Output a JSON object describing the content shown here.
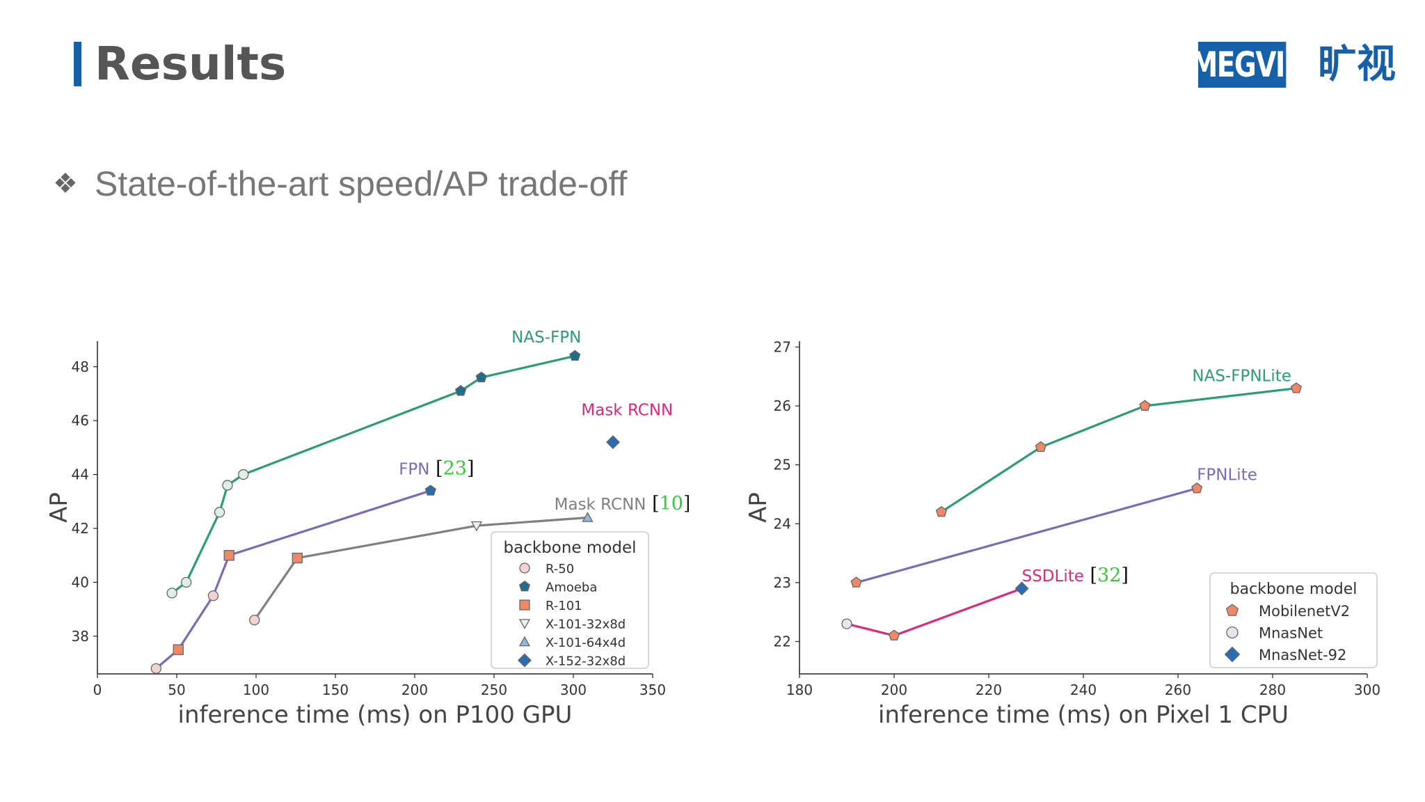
{
  "slide": {
    "title": "Results",
    "bullet_icon": "diamond-cluster-icon",
    "bullet_text": "State-of-the-art speed/AP trade-off",
    "logo": {
      "text_en": "MEGVII",
      "text_cn": "旷视",
      "color": "#1560a8"
    }
  },
  "chart_data": [
    {
      "type": "line",
      "title": "",
      "xlabel": "inference time (ms) on P100 GPU",
      "ylabel": "AP",
      "xlim": [
        0,
        350
      ],
      "ylim": [
        36.6,
        48.95
      ],
      "xticks": [
        0,
        50,
        100,
        150,
        200,
        250,
        300,
        350
      ],
      "yticks": [
        38,
        40,
        42,
        44,
        46,
        48
      ],
      "legend": {
        "title": "backbone model",
        "placement": "lower-right",
        "entries": [
          {
            "label": "R-50",
            "marker": "circle",
            "color": "#f2d3d0"
          },
          {
            "label": "Amoeba",
            "marker": "pentagon",
            "color": "#1f6e8c"
          },
          {
            "label": "R-101",
            "marker": "square",
            "color": "#ee8866"
          },
          {
            "label": "X-101-32x8d",
            "marker": "triangle-down",
            "color": "#eeeeee"
          },
          {
            "label": "X-101-64x4d",
            "marker": "triangle-up",
            "color": "#8fb8de"
          },
          {
            "label": "X-152-32x8d",
            "marker": "diamond",
            "color": "#2b6cb0"
          }
        ]
      },
      "series": [
        {
          "name": "NAS-FPN",
          "label": "NAS-FPN",
          "color": "#2a9d76",
          "points": [
            {
              "x": 47,
              "y": 39.6,
              "m": "circle",
              "f": "#dceee6"
            },
            {
              "x": 56,
              "y": 40.0,
              "m": "circle",
              "f": "#dceee6"
            },
            {
              "x": 77,
              "y": 42.6,
              "m": "circle",
              "f": "#dceee6"
            },
            {
              "x": 82,
              "y": 43.6,
              "m": "circle",
              "f": "#dceee6"
            },
            {
              "x": 92,
              "y": 44.0,
              "m": "circle",
              "f": "#dceee6"
            },
            {
              "x": 229,
              "y": 47.1,
              "m": "pentagon",
              "f": "#1f6e8c"
            },
            {
              "x": 242,
              "y": 47.6,
              "m": "pentagon",
              "f": "#1f6e8c"
            },
            {
              "x": 301,
              "y": 48.4,
              "m": "pentagon",
              "f": "#1f6e8c"
            }
          ]
        },
        {
          "name": "FPN",
          "label": "FPN",
          "ref": "23",
          "color": "#7b6bb5",
          "points": [
            {
              "x": 37,
              "y": 36.8,
              "m": "circle",
              "f": "#f2d3d0"
            },
            {
              "x": 51,
              "y": 37.5,
              "m": "square",
              "f": "#ee8866"
            },
            {
              "x": 73,
              "y": 39.5,
              "m": "circle",
              "f": "#f2d3d0"
            },
            {
              "x": 83,
              "y": 41.0,
              "m": "square",
              "f": "#ee8866"
            },
            {
              "x": 210,
              "y": 43.4,
              "m": "pentagon",
              "f": "#2b6cb0"
            }
          ]
        },
        {
          "name": "Mask RCNN [10]",
          "label": "Mask RCNN",
          "ref": "10",
          "color": "#808080",
          "points": [
            {
              "x": 99,
              "y": 38.6,
              "m": "circle",
              "f": "#f2d3d0"
            },
            {
              "x": 126,
              "y": 40.9,
              "m": "square",
              "f": "#ee8866"
            },
            {
              "x": 239,
              "y": 42.1,
              "m": "triangle-down",
              "f": "#eeeeee"
            },
            {
              "x": 309,
              "y": 42.4,
              "m": "triangle-up",
              "f": "#8fb8de"
            }
          ]
        },
        {
          "name": "Mask RCNN",
          "label": "Mask RCNN",
          "color": "#e0287a",
          "points": [
            {
              "x": 325,
              "y": 45.2,
              "m": "diamond",
              "f": "#2b6cb0"
            }
          ]
        }
      ]
    },
    {
      "type": "line",
      "title": "",
      "xlabel": "inference time (ms) on Pixel 1 CPU",
      "ylabel": "AP",
      "xlim": [
        180,
        300
      ],
      "ylim": [
        21.45,
        27.1
      ],
      "xticks": [
        180,
        200,
        220,
        240,
        260,
        280,
        300
      ],
      "yticks": [
        22,
        23,
        24,
        25,
        26,
        27
      ],
      "legend": {
        "title": "backbone model",
        "placement": "lower-right",
        "entries": [
          {
            "label": "MobilenetV2",
            "marker": "pentagon",
            "color": "#ee8866"
          },
          {
            "label": "MnasNet",
            "marker": "circle",
            "color": "#e6e6ee"
          },
          {
            "label": "MnasNet-92",
            "marker": "diamond",
            "color": "#2b6cb0"
          }
        ]
      },
      "series": [
        {
          "name": "NAS-FPNLite",
          "label": "NAS-FPNLite",
          "color": "#2a9d76",
          "points": [
            {
              "x": 210,
              "y": 24.2,
              "m": "pentagon",
              "f": "#ee8866"
            },
            {
              "x": 231,
              "y": 25.3,
              "m": "pentagon",
              "f": "#ee8866"
            },
            {
              "x": 253,
              "y": 26.0,
              "m": "pentagon",
              "f": "#ee8866"
            },
            {
              "x": 285,
              "y": 26.3,
              "m": "pentagon",
              "f": "#ee8866"
            }
          ]
        },
        {
          "name": "FPNLite",
          "label": "FPNLite",
          "color": "#7b6bb5",
          "points": [
            {
              "x": 192,
              "y": 23.0,
              "m": "pentagon",
              "f": "#ee8866"
            },
            {
              "x": 264,
              "y": 24.6,
              "m": "pentagon",
              "f": "#ee8866"
            }
          ]
        },
        {
          "name": "SSDLite [32]",
          "label": "SSDLite",
          "ref": "32",
          "color": "#e0287a",
          "points": [
            {
              "x": 190,
              "y": 22.3,
              "m": "circle",
              "f": "#e6e6ee"
            },
            {
              "x": 200,
              "y": 22.1,
              "m": "pentagon",
              "f": "#ee8866"
            },
            {
              "x": 227,
              "y": 22.9,
              "m": "diamond",
              "f": "#2b6cb0"
            }
          ]
        }
      ]
    }
  ]
}
